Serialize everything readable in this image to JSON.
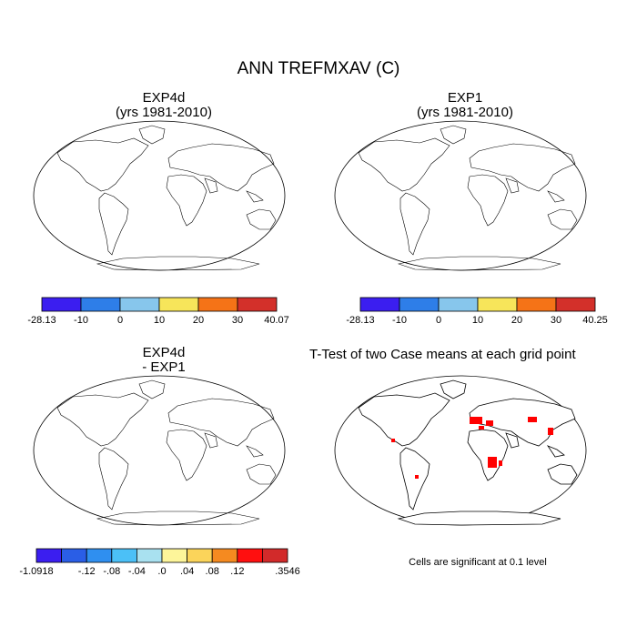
{
  "figure": {
    "title": "ANN TREFMXAV (C)",
    "colors": {
      "ocean": "#ffffff",
      "outline": "#000000",
      "sig_cells": "#ff0000"
    }
  },
  "panels": [
    {
      "title": "EXP4d",
      "subtitle": "(yrs 1981-2010)",
      "colorbar": {
        "labels": [
          "-28.13",
          "-10",
          "0",
          "10",
          "20",
          "30",
          "40.07"
        ],
        "colors": [
          "#3b1ef0",
          "#2e7ee8",
          "#87c6ec",
          "#f7e55a",
          "#f57317",
          "#d3302a"
        ]
      }
    },
    {
      "title": "EXP1",
      "subtitle": "(yrs 1981-2010)",
      "colorbar": {
        "labels": [
          "-28.13",
          "-10",
          "0",
          "10",
          "20",
          "30",
          "40.25"
        ],
        "colors": [
          "#3b1ef0",
          "#2e7ee8",
          "#87c6ec",
          "#f7e55a",
          "#f57317",
          "#d3302a"
        ]
      }
    },
    {
      "title": "EXP4d",
      "subtitle": "- EXP1",
      "colorbar": {
        "labels": [
          "-1.0918",
          "-.12",
          "-.08",
          "-.04",
          ".0",
          ".04",
          ".08",
          ".12",
          ".3546"
        ],
        "label_slots": [
          0,
          2,
          3,
          4,
          5,
          6,
          7,
          8,
          10
        ],
        "colors": [
          "#3b1ef0",
          "#2a5ee6",
          "#2f8ff0",
          "#4bc0f7",
          "#a9e1f0",
          "#fdf59a",
          "#fbd45a",
          "#f58a20",
          "#ff0f0f",
          "#d22a2a"
        ]
      }
    },
    {
      "title": "T-Test of two Case means at each grid point",
      "note": "Cells are significant at 0.1 level"
    }
  ]
}
